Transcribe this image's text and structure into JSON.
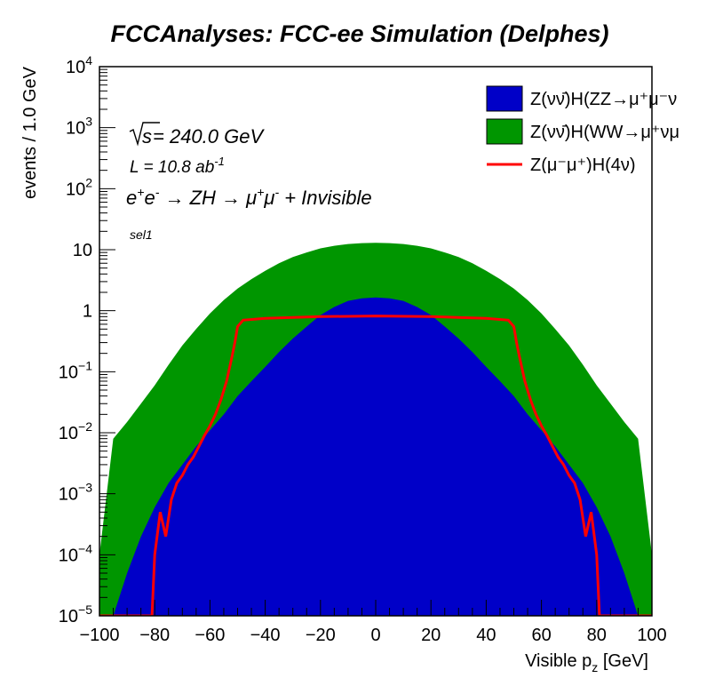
{
  "chart_data": {
    "type": "histogram",
    "title": "FCCAnalyses: FCC-ee Simulation (Delphes)",
    "xlabel": "Visible p",
    "xlabel_sub": "z",
    "xlabel_unit": " [GeV]",
    "ylabel": "events / 1.0 GeV",
    "xlim": [
      -100,
      100
    ],
    "ylim": [
      1e-05,
      10000
    ],
    "yscale": "log",
    "x_ticks": [
      -100,
      -80,
      -60,
      -40,
      -20,
      0,
      20,
      40,
      60,
      80,
      100
    ],
    "y_ticks": [
      {
        "base": "10",
        "exp": "4",
        "value": 10000
      },
      {
        "base": "10",
        "exp": "3",
        "value": 1000
      },
      {
        "base": "10",
        "exp": "2",
        "value": 100
      },
      {
        "base": "10",
        "exp": "",
        "value": 10
      },
      {
        "base": "1",
        "exp": "",
        "value": 1
      },
      {
        "base": "10",
        "exp": "−1",
        "value": 0.1
      },
      {
        "base": "10",
        "exp": "−2",
        "value": 0.01
      },
      {
        "base": "10",
        "exp": "−3",
        "value": 0.001
      },
      {
        "base": "10",
        "exp": "−4",
        "value": 0.0001
      },
      {
        "base": "10",
        "exp": "−5",
        "value": 1e-05
      }
    ],
    "annotations": {
      "sqrt_s": "s",
      "energy": " = 240.0 GeV",
      "lumi_prefix": "L = 10.8 ab",
      "lumi_exp": "-1",
      "process_1": "e",
      "process_2": "e",
      "process_3": " → ZH → μ",
      "process_4": "μ",
      "process_5": " + Invisible",
      "selection": "sel1"
    },
    "legend_position": "top-right",
    "series": [
      {
        "name": "Z(νν̄)H(WW→μ⁺νμ⁻ν̄)",
        "legend_text": "Z(νν̄)H(WW→μ⁺νμ",
        "style": "filled",
        "color": "#009600",
        "x": [
          -100,
          -95,
          -90,
          -85,
          -80,
          -75,
          -70,
          -65,
          -60,
          -55,
          -50,
          -45,
          -40,
          -35,
          -30,
          -25,
          -20,
          -15,
          -10,
          -5,
          0,
          5,
          10,
          15,
          20,
          25,
          30,
          35,
          40,
          45,
          50,
          55,
          60,
          65,
          70,
          75,
          80,
          85,
          90,
          95,
          100
        ],
        "values": [
          0.0001,
          0.008,
          0.015,
          0.03,
          0.06,
          0.13,
          0.27,
          0.5,
          0.9,
          1.5,
          2.3,
          3.3,
          4.5,
          6.0,
          7.6,
          9.0,
          10.5,
          11.6,
          12.4,
          12.8,
          13.0,
          12.8,
          12.4,
          11.6,
          10.5,
          9.0,
          7.6,
          6.0,
          4.5,
          3.3,
          2.3,
          1.5,
          0.9,
          0.5,
          0.27,
          0.13,
          0.06,
          0.03,
          0.015,
          0.008,
          0.0001
        ]
      },
      {
        "name": "Z(νν̄)H(ZZ→μ⁺μ⁻νν̄)",
        "legend_text": "Z(νν̄)H(ZZ→μ⁺μ⁻ν",
        "style": "filled",
        "color": "#0000c8",
        "x": [
          -100,
          -95,
          -90,
          -85,
          -80,
          -75,
          -70,
          -65,
          -60,
          -55,
          -50,
          -45,
          -40,
          -35,
          -30,
          -25,
          -20,
          -15,
          -10,
          -5,
          0,
          5,
          10,
          15,
          20,
          25,
          30,
          35,
          40,
          45,
          50,
          55,
          60,
          65,
          70,
          75,
          80,
          85,
          90,
          95,
          100
        ],
        "values": [
          1e-05,
          1e-05,
          5e-05,
          0.0002,
          0.0006,
          0.0015,
          0.003,
          0.006,
          0.011,
          0.02,
          0.04,
          0.07,
          0.12,
          0.21,
          0.35,
          0.55,
          0.85,
          1.15,
          1.45,
          1.6,
          1.65,
          1.6,
          1.45,
          1.15,
          0.85,
          0.55,
          0.35,
          0.21,
          0.12,
          0.07,
          0.04,
          0.02,
          0.011,
          0.006,
          0.003,
          0.0015,
          0.0006,
          0.0002,
          5e-05,
          1e-05,
          1e-05
        ]
      },
      {
        "name": "Z(μ⁻μ⁺)H(4ν)",
        "legend_text": "Z(μ⁻μ⁺)H(4ν)",
        "style": "line",
        "color": "#ff0000",
        "x": [
          -100,
          -82,
          -81,
          -80,
          -78,
          -76,
          -74,
          -72,
          -70,
          -68,
          -66,
          -64,
          -62,
          -60,
          -58,
          -56,
          -54,
          -52,
          -51,
          -50,
          -48,
          -40,
          -20,
          0,
          20,
          40,
          48,
          50,
          51,
          52,
          54,
          56,
          58,
          60,
          62,
          64,
          66,
          68,
          70,
          72,
          74,
          76,
          78,
          80,
          81,
          82,
          100
        ],
        "values": [
          1e-05,
          1e-05,
          1e-05,
          0.0001,
          0.0005,
          0.0002,
          0.0008,
          0.0015,
          0.002,
          0.003,
          0.004,
          0.006,
          0.009,
          0.013,
          0.02,
          0.035,
          0.07,
          0.18,
          0.3,
          0.55,
          0.7,
          0.75,
          0.8,
          0.82,
          0.8,
          0.75,
          0.7,
          0.55,
          0.3,
          0.18,
          0.07,
          0.035,
          0.02,
          0.013,
          0.009,
          0.006,
          0.004,
          0.003,
          0.002,
          0.0015,
          0.0008,
          0.0002,
          0.0005,
          0.0001,
          1e-05,
          1e-05,
          1e-05
        ]
      }
    ]
  }
}
